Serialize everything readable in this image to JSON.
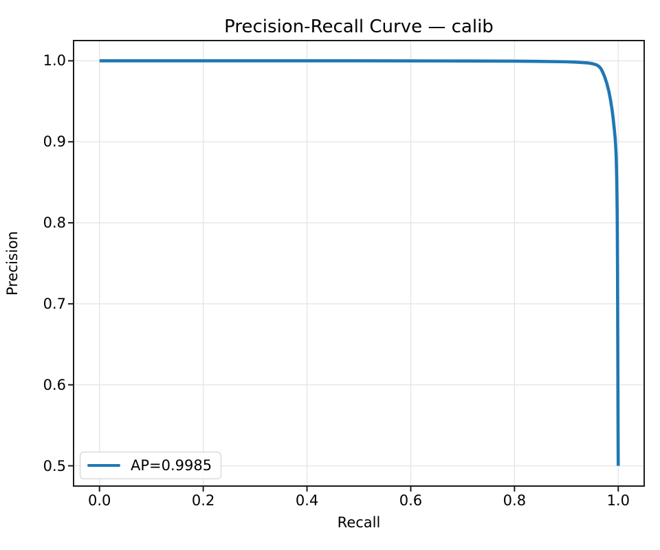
{
  "chart_data": {
    "type": "line",
    "title": "Precision-Recall Curve — calib",
    "xlabel": "Recall",
    "ylabel": "Precision",
    "xlim": [
      -0.05,
      1.05
    ],
    "ylim": [
      0.475,
      1.025
    ],
    "x_ticks": [
      0.0,
      0.2,
      0.4,
      0.6,
      0.8,
      1.0
    ],
    "x_tick_labels": [
      "0.0",
      "0.2",
      "0.4",
      "0.6",
      "0.8",
      "1.0"
    ],
    "y_ticks": [
      0.5,
      0.6,
      0.7,
      0.8,
      0.9,
      1.0
    ],
    "y_tick_labels": [
      "0.5",
      "0.6",
      "0.7",
      "0.8",
      "0.9",
      "1.0"
    ],
    "grid": true,
    "grid_color": "#e6e6e6",
    "spine_color": "#1a1a1a",
    "legend": {
      "position": "lower left",
      "entries": [
        {
          "label": "AP=0.9985",
          "color": "#1f77b4"
        }
      ]
    },
    "series": [
      {
        "name": "AP=0.9985",
        "color": "#1f77b4",
        "ap": 0.9985,
        "points": [
          [
            0.0,
            1.0
          ],
          [
            0.1,
            1.0
          ],
          [
            0.2,
            1.0
          ],
          [
            0.3,
            1.0
          ],
          [
            0.4,
            1.0
          ],
          [
            0.5,
            1.0
          ],
          [
            0.6,
            0.9999
          ],
          [
            0.7,
            0.9998
          ],
          [
            0.8,
            0.9996
          ],
          [
            0.85,
            0.9993
          ],
          [
            0.9,
            0.9988
          ],
          [
            0.92,
            0.9983
          ],
          [
            0.94,
            0.9975
          ],
          [
            0.95,
            0.9965
          ],
          [
            0.958,
            0.995
          ],
          [
            0.963,
            0.993
          ],
          [
            0.967,
            0.99
          ],
          [
            0.97,
            0.986
          ],
          [
            0.974,
            0.98
          ],
          [
            0.978,
            0.972
          ],
          [
            0.982,
            0.962
          ],
          [
            0.985,
            0.952
          ],
          [
            0.988,
            0.94
          ],
          [
            0.99,
            0.93
          ],
          [
            0.992,
            0.918
          ],
          [
            0.994,
            0.905
          ],
          [
            0.995,
            0.895
          ],
          [
            0.996,
            0.882
          ],
          [
            0.9965,
            0.87
          ],
          [
            0.997,
            0.855
          ],
          [
            0.9975,
            0.835
          ],
          [
            0.998,
            0.81
          ],
          [
            0.9983,
            0.78
          ],
          [
            0.9986,
            0.74
          ],
          [
            0.9989,
            0.69
          ],
          [
            0.9992,
            0.63
          ],
          [
            0.9995,
            0.57
          ],
          [
            0.9998,
            0.52
          ],
          [
            1.0,
            0.5
          ]
        ]
      }
    ]
  }
}
